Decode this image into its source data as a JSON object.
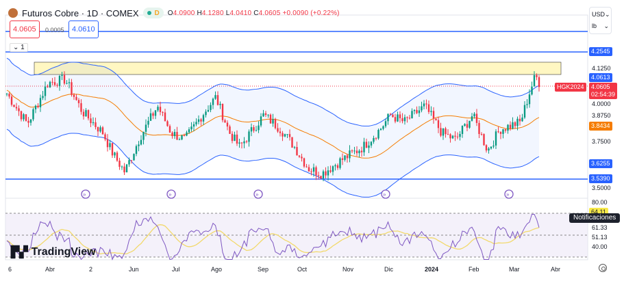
{
  "header": {
    "title": "Futuros Cobre · 1D · COMEX",
    "interval_badge": "D",
    "open": "4.0900",
    "high": "4.1280",
    "low": "4.0410",
    "close": "4.0605",
    "change": "+0.0090 (+0.22%)",
    "o_label": "O",
    "h_label": "H",
    "l_label": "L",
    "c_label": "C"
  },
  "trade": {
    "sell": "4.0605",
    "spread": "0.0005",
    "buy": "4.0610"
  },
  "collapse_label": "⌄ 1",
  "units": {
    "currency": "USD",
    "unit": "lb"
  },
  "price_axis": {
    "labels": [
      "4.1250",
      "4.0000",
      "3.8750",
      "3.7500",
      "3.5000"
    ],
    "rsi_labels": [
      "80.00",
      "61.33",
      "51.13",
      "40.00"
    ]
  },
  "tags": {
    "hline_top": "4.2545",
    "bb_upper": "4.0613",
    "symbol": "HGK2024",
    "last": "4.0605",
    "countdown": "02:54:39",
    "ma": "3.8434",
    "bb_lower": "3.6255",
    "hline_bottom": "3.5390",
    "rsi": "64.11"
  },
  "time_axis": [
    "6",
    "Abr",
    "2",
    "Jun",
    "Jul",
    "Ago",
    "Sep",
    "Oct",
    "Nov",
    "Dic",
    "2024",
    "Feb",
    "Mar",
    "Abr"
  ],
  "brand": "TradingView",
  "tooltip": "Notificaciones",
  "colors": {
    "up": "#089981",
    "down": "#f23645",
    "hline": "#2962ff",
    "ma": "#f57c00",
    "bb": "#2962ff",
    "rsi": "#7e57c2"
  },
  "price_anchors": [
    [
      10,
      4.02
    ],
    [
      40,
      3.85
    ],
    [
      70,
      4.08
    ],
    [
      95,
      4.1
    ],
    [
      120,
      3.92
    ],
    [
      150,
      3.8
    ],
    [
      165,
      3.68
    ],
    [
      182,
      3.58
    ],
    [
      205,
      3.78
    ],
    [
      230,
      3.95
    ],
    [
      250,
      3.8
    ],
    [
      270,
      3.76
    ],
    [
      295,
      3.9
    ],
    [
      315,
      4.0
    ],
    [
      335,
      3.8
    ],
    [
      350,
      3.72
    ],
    [
      385,
      3.9
    ],
    [
      410,
      3.82
    ],
    [
      430,
      3.72
    ],
    [
      450,
      3.6
    ],
    [
      470,
      3.57
    ],
    [
      500,
      3.65
    ],
    [
      530,
      3.72
    ],
    [
      555,
      3.82
    ],
    [
      570,
      3.9
    ],
    [
      590,
      3.86
    ],
    [
      620,
      3.95
    ],
    [
      645,
      3.8
    ],
    [
      665,
      3.76
    ],
    [
      690,
      3.9
    ],
    [
      712,
      3.7
    ],
    [
      730,
      3.82
    ],
    [
      760,
      3.86
    ],
    [
      775,
      4.05
    ],
    [
      782,
      4.12
    ],
    [
      790,
      4.06
    ]
  ]
}
